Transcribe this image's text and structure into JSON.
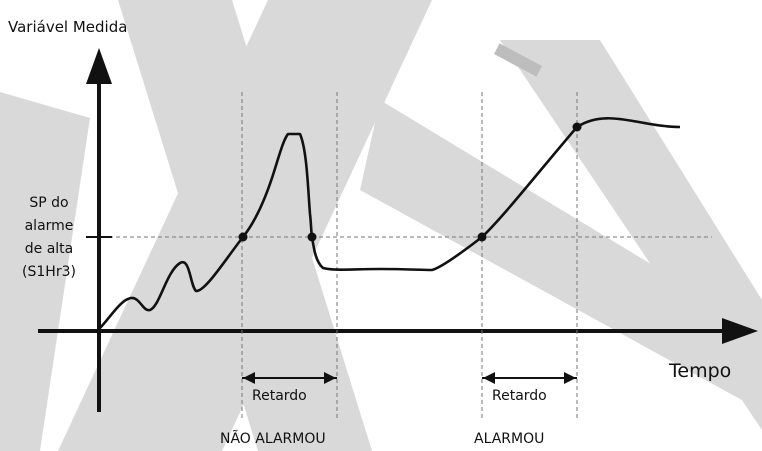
{
  "axes": {
    "y_label": "Variável Medida",
    "x_label": "Tempo"
  },
  "setpoint": {
    "label_lines": [
      "SP do",
      "alarme",
      "de alta",
      "(S1Hr3)"
    ]
  },
  "delays": [
    {
      "label": "Retardo",
      "result": "NÃO ALARMOU"
    },
    {
      "label": "Retardo",
      "result": "ALARMOU"
    }
  ],
  "colors": {
    "ink": "#111111",
    "watermark": "#d9d9d9",
    "background": "#ffffff"
  }
}
